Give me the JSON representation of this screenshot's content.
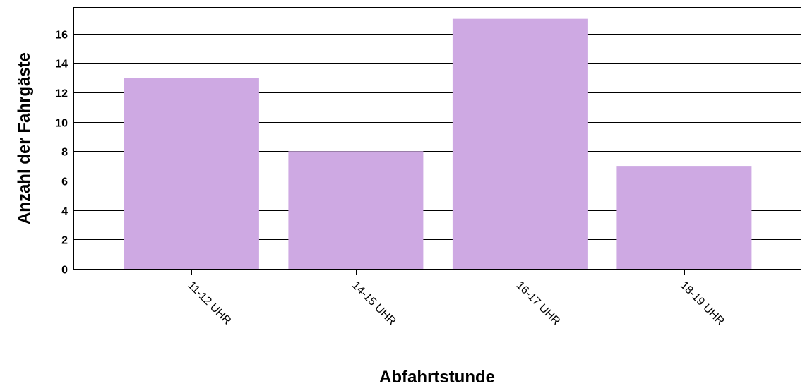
{
  "chart_data": {
    "type": "bar",
    "title": "",
    "xlabel": "Abfahrtstunde",
    "ylabel": "Anzahl der Fahrgäste",
    "categories": [
      "11-12 UHR",
      "14-15 UHR",
      "16-17 UHR",
      "18-19 UHR"
    ],
    "values": [
      13,
      8,
      17,
      7
    ],
    "ylim": [
      0,
      17.8
    ],
    "yticks": [
      0,
      2,
      4,
      6,
      8,
      10,
      12,
      14,
      16
    ],
    "grid": "horizontal",
    "legend": "none",
    "bar_color": "#cea9e3"
  }
}
